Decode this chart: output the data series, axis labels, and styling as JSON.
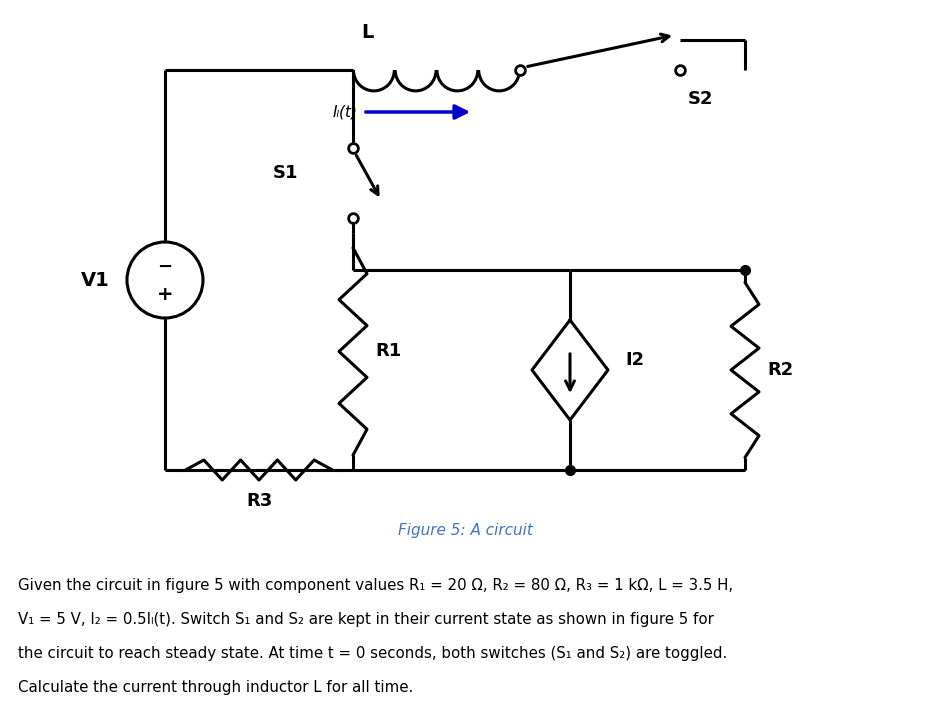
{
  "bg_color": "#ffffff",
  "fig_caption": "Figure 5: A circuit",
  "caption_color": "#4472C4",
  "caption_fontsize": 11,
  "wire_color": "#000000",
  "lw": 2.2,
  "line1": "Given the circuit in figure 5 with component values R₁ = 20 Ω, R₂ = 80 Ω, R₃ = 1 kΩ, L = 3.5 H,",
  "line2": "V₁ = 5 V, I₂ = 0.5Iₗ(t). Switch S₁ and S₂ are kept in their current state as shown in figure 5 for",
  "line3": "the circuit to reach steady state. At time t = 0 seconds, both switches (S₁ and S₂) are toggled.",
  "line4": "Calculate the current through inductor L for all time."
}
